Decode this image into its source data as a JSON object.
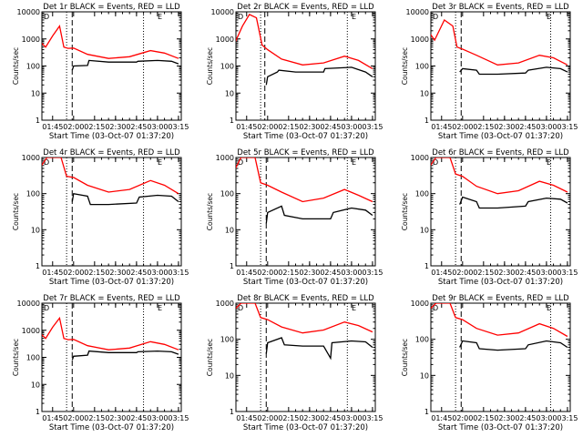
{
  "colors": {
    "background": "#ffffff",
    "events": "#000000",
    "lld": "#ff0000",
    "axis": "#000000"
  },
  "common": {
    "xlabel": "Start Time (03-Oct-07 01:37:20)",
    "ylabel": "Counts/sec",
    "x_tick_labels": [
      "01:45",
      "02:00",
      "02:15",
      "02:30",
      "02:45",
      "03:00",
      "03:15"
    ],
    "y_tick_labels": [
      "1",
      "10",
      "100",
      "1000",
      "10000"
    ],
    "plot_symbol_labels": [
      "D",
      "E"
    ]
  },
  "chart_data": [
    {
      "type": "line",
      "title": "Det 1r BLACK = Events, RED = LLD",
      "xlim": [
        "01:37:20",
        "03:17"
      ],
      "ylim": [
        1,
        10000
      ],
      "y_scale": "log",
      "series": [
        {
          "name": "Events",
          "color": "#000000",
          "x": [
            "01:59",
            "02:00",
            "02:10",
            "02:11",
            "02:25",
            "02:45",
            "02:46",
            "03:00",
            "03:10",
            "03:15"
          ],
          "y": [
            70,
            100,
            105,
            160,
            140,
            140,
            150,
            160,
            150,
            120
          ]
        },
        {
          "name": "LLD",
          "color": "#ff0000",
          "x": [
            "01:37",
            "01:40",
            "01:45",
            "01:50",
            "01:53",
            "01:56",
            "02:00",
            "02:10",
            "02:25",
            "02:40",
            "02:55",
            "03:05",
            "03:15"
          ],
          "y": [
            700,
            500,
            1300,
            3000,
            500,
            450,
            460,
            270,
            190,
            220,
            370,
            300,
            190
          ]
        }
      ],
      "vlines": [
        {
          "x": "01:55",
          "style": "dotted"
        },
        {
          "x": "01:59",
          "style": "dashed"
        },
        {
          "x": "02:50",
          "style": "dotted"
        }
      ]
    },
    {
      "type": "line",
      "title": "Det 2r BLACK = Events, RED = LLD",
      "xlim": [
        "01:37:20",
        "03:17"
      ],
      "ylim": [
        1,
        10000
      ],
      "y_scale": "log",
      "series": [
        {
          "name": "Events",
          "color": "#000000",
          "x": [
            "01:59",
            "02:00",
            "02:07",
            "02:08",
            "02:20",
            "02:40",
            "02:41",
            "03:00",
            "03:10",
            "03:15"
          ],
          "y": [
            20,
            40,
            60,
            70,
            60,
            60,
            80,
            90,
            60,
            40
          ]
        },
        {
          "name": "LLD",
          "color": "#ff0000",
          "x": [
            "01:37",
            "01:42",
            "01:47",
            "01:52",
            "01:56",
            "02:00",
            "02:10",
            "02:25",
            "02:40",
            "02:55",
            "03:05",
            "03:15"
          ],
          "y": [
            800,
            3000,
            8000,
            6000,
            600,
            400,
            180,
            110,
            130,
            230,
            160,
            80
          ]
        }
      ],
      "vlines": [
        {
          "x": "01:55",
          "style": "dotted"
        },
        {
          "x": "01:58",
          "style": "dashed"
        },
        {
          "x": "02:57",
          "style": "dotted"
        }
      ]
    },
    {
      "type": "line",
      "title": "Det 3r BLACK = Events, RED = LLD",
      "xlim": [
        "01:37:20",
        "03:17"
      ],
      "ylim": [
        1,
        10000
      ],
      "y_scale": "log",
      "series": [
        {
          "name": "Events",
          "color": "#000000",
          "x": [
            "01:58",
            "02:00",
            "02:10",
            "02:12",
            "02:25",
            "02:45",
            "02:47",
            "03:00",
            "03:10",
            "03:15"
          ],
          "y": [
            60,
            80,
            70,
            50,
            50,
            55,
            70,
            90,
            80,
            60
          ]
        },
        {
          "name": "LLD",
          "color": "#ff0000",
          "x": [
            "01:37",
            "01:40",
            "01:47",
            "01:53",
            "01:56",
            "02:00",
            "02:10",
            "02:25",
            "02:40",
            "02:55",
            "03:05",
            "03:15"
          ],
          "y": [
            1500,
            900,
            5000,
            3000,
            500,
            420,
            250,
            110,
            130,
            250,
            200,
            110
          ]
        }
      ],
      "vlines": [
        {
          "x": "01:55",
          "style": "dotted"
        },
        {
          "x": "01:59",
          "style": "dashed"
        },
        {
          "x": "03:03",
          "style": "dotted"
        }
      ]
    },
    {
      "type": "line",
      "title": "Det 4r BLACK = Events, RED = LLD",
      "xlim": [
        "01:37:20",
        "03:17"
      ],
      "ylim": [
        1,
        1000
      ],
      "y_scale": "log",
      "series": [
        {
          "name": "Events",
          "color": "#000000",
          "x": [
            "01:59",
            "02:00",
            "02:10",
            "02:12",
            "02:25",
            "02:45",
            "02:47",
            "03:00",
            "03:10",
            "03:15"
          ],
          "y": [
            60,
            100,
            85,
            50,
            50,
            55,
            80,
            90,
            85,
            60
          ]
        },
        {
          "name": "LLD",
          "color": "#ff0000",
          "x": [
            "01:37",
            "01:41",
            "01:46",
            "01:51",
            "01:55",
            "02:00",
            "02:10",
            "02:25",
            "02:40",
            "02:55",
            "03:05",
            "03:15"
          ],
          "y": [
            600,
            1000,
            1000,
            1000,
            300,
            280,
            170,
            110,
            130,
            230,
            170,
            100
          ]
        }
      ],
      "vlines": [
        {
          "x": "01:55",
          "style": "dotted"
        },
        {
          "x": "01:59",
          "style": "dashed"
        },
        {
          "x": "02:50",
          "style": "dotted"
        }
      ]
    },
    {
      "type": "line",
      "title": "Det 5r BLACK = Events, RED = LLD",
      "xlim": [
        "01:37:20",
        "03:17"
      ],
      "ylim": [
        1,
        1000
      ],
      "y_scale": "log",
      "series": [
        {
          "name": "Events",
          "color": "#000000",
          "x": [
            "01:59",
            "02:00",
            "02:10",
            "02:12",
            "02:25",
            "02:45",
            "02:47",
            "03:00",
            "03:10",
            "03:15"
          ],
          "y": [
            15,
            30,
            45,
            25,
            20,
            20,
            30,
            40,
            35,
            25
          ]
        },
        {
          "name": "LLD",
          "color": "#ff0000",
          "x": [
            "01:37",
            "01:41",
            "01:46",
            "01:51",
            "01:55",
            "02:00",
            "02:10",
            "02:25",
            "02:40",
            "02:55",
            "03:05",
            "03:15"
          ],
          "y": [
            500,
            1000,
            1000,
            1000,
            200,
            170,
            110,
            60,
            75,
            130,
            90,
            60
          ]
        }
      ],
      "vlines": [
        {
          "x": "01:55",
          "style": "dotted"
        },
        {
          "x": "01:59",
          "style": "dashed"
        },
        {
          "x": "02:57",
          "style": "dotted"
        }
      ]
    },
    {
      "type": "line",
      "title": "Det 6r BLACK = Events, RED = LLD",
      "xlim": [
        "01:37:20",
        "03:17"
      ],
      "ylim": [
        1,
        1000
      ],
      "y_scale": "log",
      "series": [
        {
          "name": "Events",
          "color": "#000000",
          "x": [
            "01:58",
            "02:00",
            "02:10",
            "02:12",
            "02:25",
            "02:45",
            "02:47",
            "03:00",
            "03:10",
            "03:15"
          ],
          "y": [
            50,
            80,
            60,
            40,
            40,
            45,
            60,
            75,
            70,
            55
          ]
        },
        {
          "name": "LLD",
          "color": "#ff0000",
          "x": [
            "01:37",
            "01:41",
            "01:46",
            "01:51",
            "01:55",
            "02:00",
            "02:10",
            "02:25",
            "02:40",
            "02:55",
            "03:05",
            "03:15"
          ],
          "y": [
            600,
            1000,
            1000,
            1000,
            350,
            300,
            160,
            100,
            120,
            220,
            170,
            110
          ]
        }
      ],
      "vlines": [
        {
          "x": "01:55",
          "style": "dotted"
        },
        {
          "x": "01:59",
          "style": "dashed"
        },
        {
          "x": "03:03",
          "style": "dotted"
        }
      ]
    },
    {
      "type": "line",
      "title": "Det 7r BLACK = Events, RED = LLD",
      "xlim": [
        "01:37:20",
        "03:17"
      ],
      "ylim": [
        1,
        10000
      ],
      "y_scale": "log",
      "series": [
        {
          "name": "Events",
          "color": "#000000",
          "x": [
            "01:59",
            "02:00",
            "02:10",
            "02:11",
            "02:25",
            "02:45",
            "02:46",
            "03:00",
            "03:10",
            "03:15"
          ],
          "y": [
            80,
            110,
            120,
            170,
            150,
            150,
            160,
            170,
            160,
            130
          ]
        },
        {
          "name": "LLD",
          "color": "#ff0000",
          "x": [
            "01:37",
            "01:40",
            "01:45",
            "01:50",
            "01:53",
            "01:56",
            "02:00",
            "02:10",
            "02:25",
            "02:40",
            "02:55",
            "03:05",
            "03:15"
          ],
          "y": [
            700,
            500,
            1300,
            2800,
            500,
            450,
            460,
            270,
            190,
            220,
            380,
            300,
            190
          ]
        }
      ],
      "vlines": [
        {
          "x": "01:55",
          "style": "dotted"
        },
        {
          "x": "01:59",
          "style": "dashed"
        },
        {
          "x": "02:50",
          "style": "dotted"
        }
      ]
    },
    {
      "type": "line",
      "title": "Det 8r BLACK = Events, RED = LLD",
      "xlim": [
        "01:37:20",
        "03:17"
      ],
      "ylim": [
        1,
        1000
      ],
      "y_scale": "log",
      "series": [
        {
          "name": "Events",
          "color": "#000000",
          "x": [
            "01:59",
            "02:00",
            "02:10",
            "02:12",
            "02:25",
            "02:40",
            "02:45",
            "02:46",
            "03:00",
            "03:10",
            "03:15"
          ],
          "y": [
            40,
            80,
            110,
            70,
            65,
            65,
            30,
            80,
            90,
            85,
            60
          ]
        },
        {
          "name": "LLD",
          "color": "#ff0000",
          "x": [
            "01:37",
            "01:41",
            "01:46",
            "01:51",
            "01:55",
            "02:00",
            "02:10",
            "02:25",
            "02:40",
            "02:55",
            "03:05",
            "03:15"
          ],
          "y": [
            700,
            1000,
            1000,
            1000,
            400,
            350,
            220,
            150,
            180,
            300,
            240,
            160
          ]
        }
      ],
      "vlines": [
        {
          "x": "01:55",
          "style": "dotted"
        },
        {
          "x": "01:59",
          "style": "dashed"
        },
        {
          "x": "02:57",
          "style": "dotted"
        }
      ]
    },
    {
      "type": "line",
      "title": "Det 9r BLACK = Events, RED = LLD",
      "xlim": [
        "01:37:20",
        "03:17"
      ],
      "ylim": [
        1,
        1000
      ],
      "y_scale": "log",
      "series": [
        {
          "name": "Events",
          "color": "#000000",
          "x": [
            "01:58",
            "02:00",
            "02:10",
            "02:12",
            "02:25",
            "02:45",
            "02:47",
            "03:00",
            "03:10",
            "03:15"
          ],
          "y": [
            60,
            90,
            80,
            55,
            50,
            55,
            70,
            90,
            80,
            60
          ]
        },
        {
          "name": "LLD",
          "color": "#ff0000",
          "x": [
            "01:37",
            "01:41",
            "01:46",
            "01:51",
            "01:55",
            "02:00",
            "02:10",
            "02:25",
            "02:40",
            "02:55",
            "03:05",
            "03:15"
          ],
          "y": [
            700,
            1000,
            1000,
            1000,
            400,
            350,
            200,
            130,
            150,
            270,
            200,
            120
          ]
        }
      ],
      "vlines": [
        {
          "x": "01:55",
          "style": "dotted"
        },
        {
          "x": "01:59",
          "style": "dashed"
        },
        {
          "x": "03:03",
          "style": "dotted"
        }
      ]
    }
  ]
}
